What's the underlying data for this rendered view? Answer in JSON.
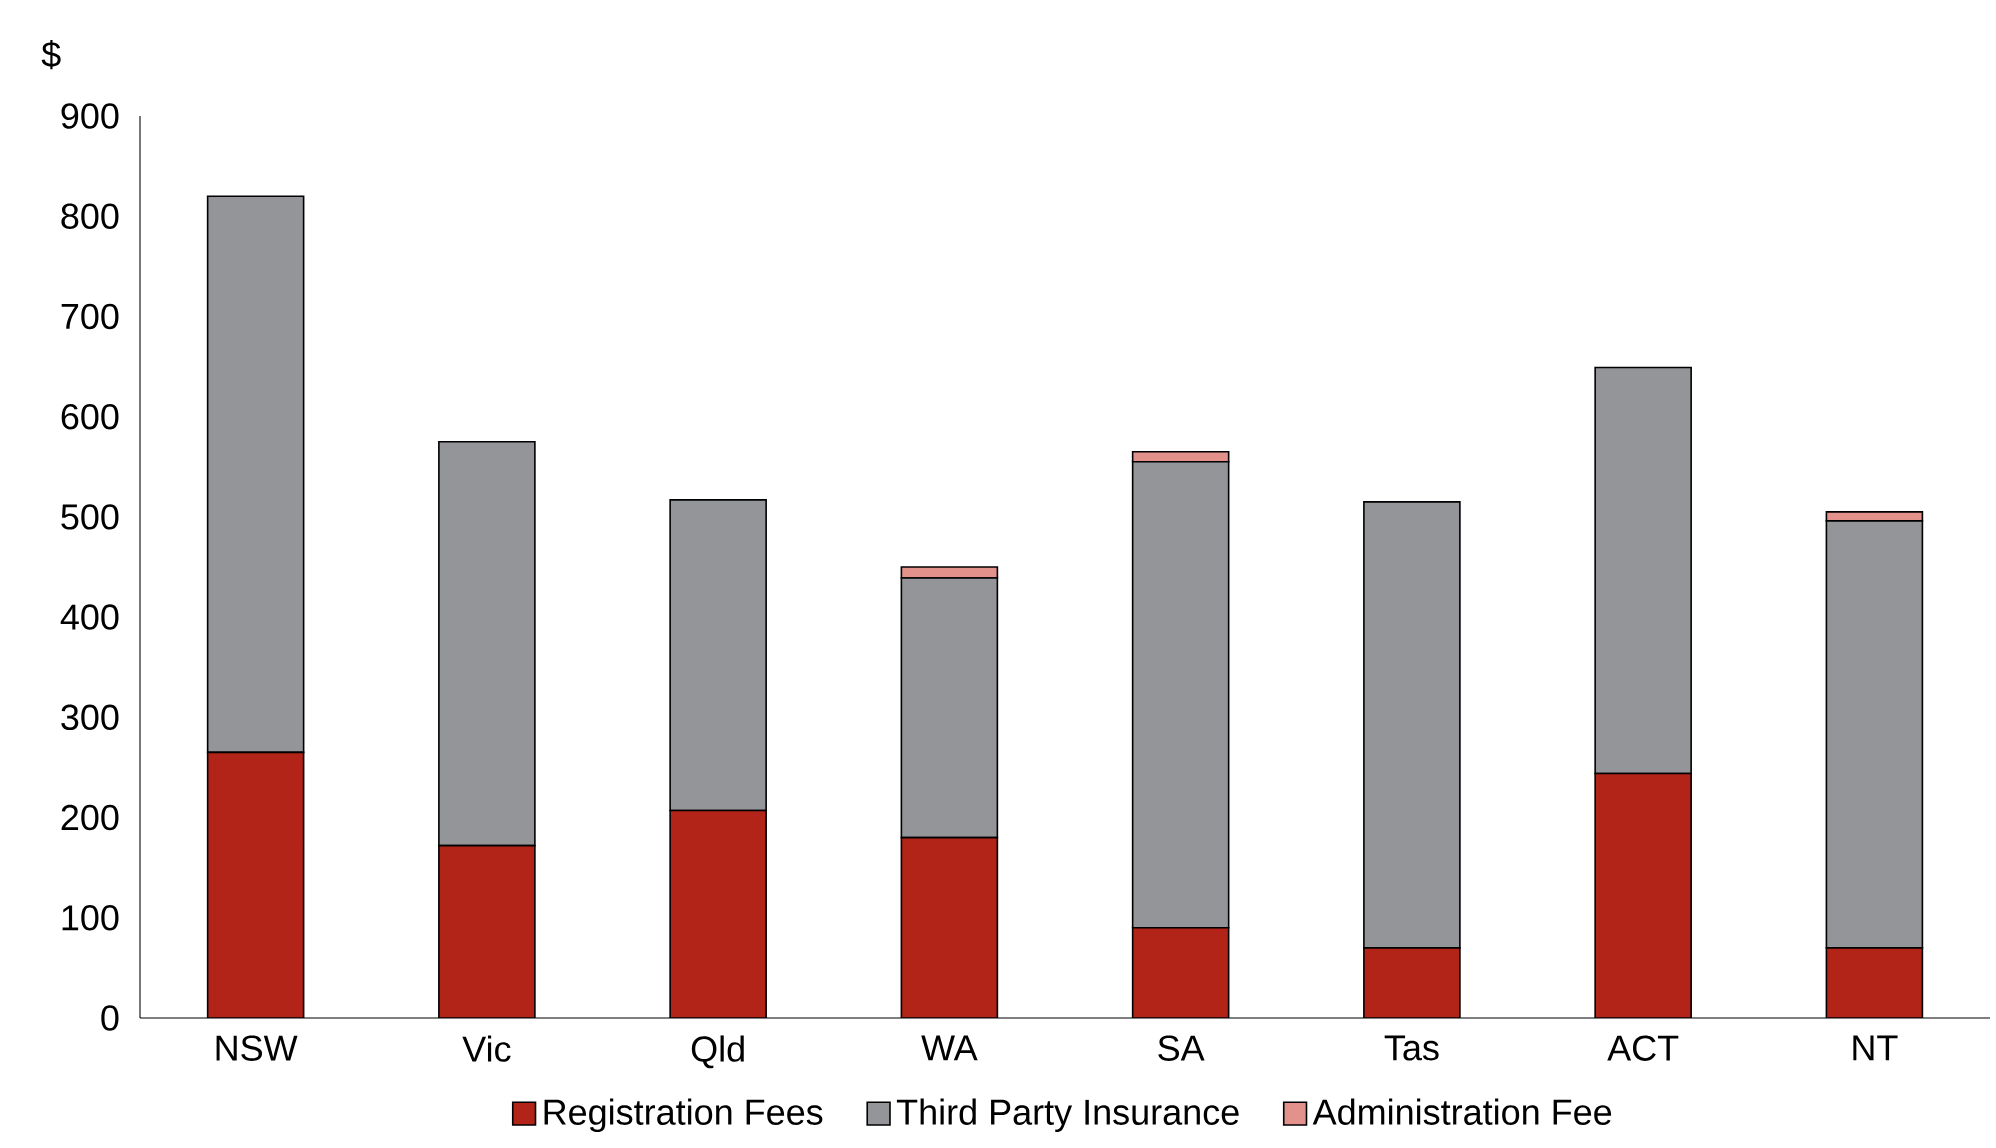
{
  "chart_data": {
    "type": "bar",
    "stacked": true,
    "ylabel": "$",
    "categories": [
      "NSW",
      "Vic",
      "Qld",
      "WA",
      "SA",
      "Tas",
      "ACT",
      "NT"
    ],
    "series": [
      {
        "name": "Registration Fees",
        "color": "#b22318",
        "values": [
          265,
          172,
          207,
          180,
          90,
          70,
          244,
          70
        ]
      },
      {
        "name": "Third Party Insurance",
        "color": "#939598",
        "values": [
          555,
          403,
          310,
          259,
          465,
          445,
          405,
          426
        ]
      },
      {
        "name": "Administration Fee",
        "color": "#e3918b",
        "values": [
          null,
          null,
          null,
          11,
          10,
          null,
          null,
          9
        ]
      }
    ],
    "ylim": [
      0,
      900
    ],
    "yticks": [
      0,
      100,
      200,
      300,
      400,
      500,
      600,
      700,
      800,
      900
    ],
    "grid": false,
    "legend": "bottom"
  }
}
